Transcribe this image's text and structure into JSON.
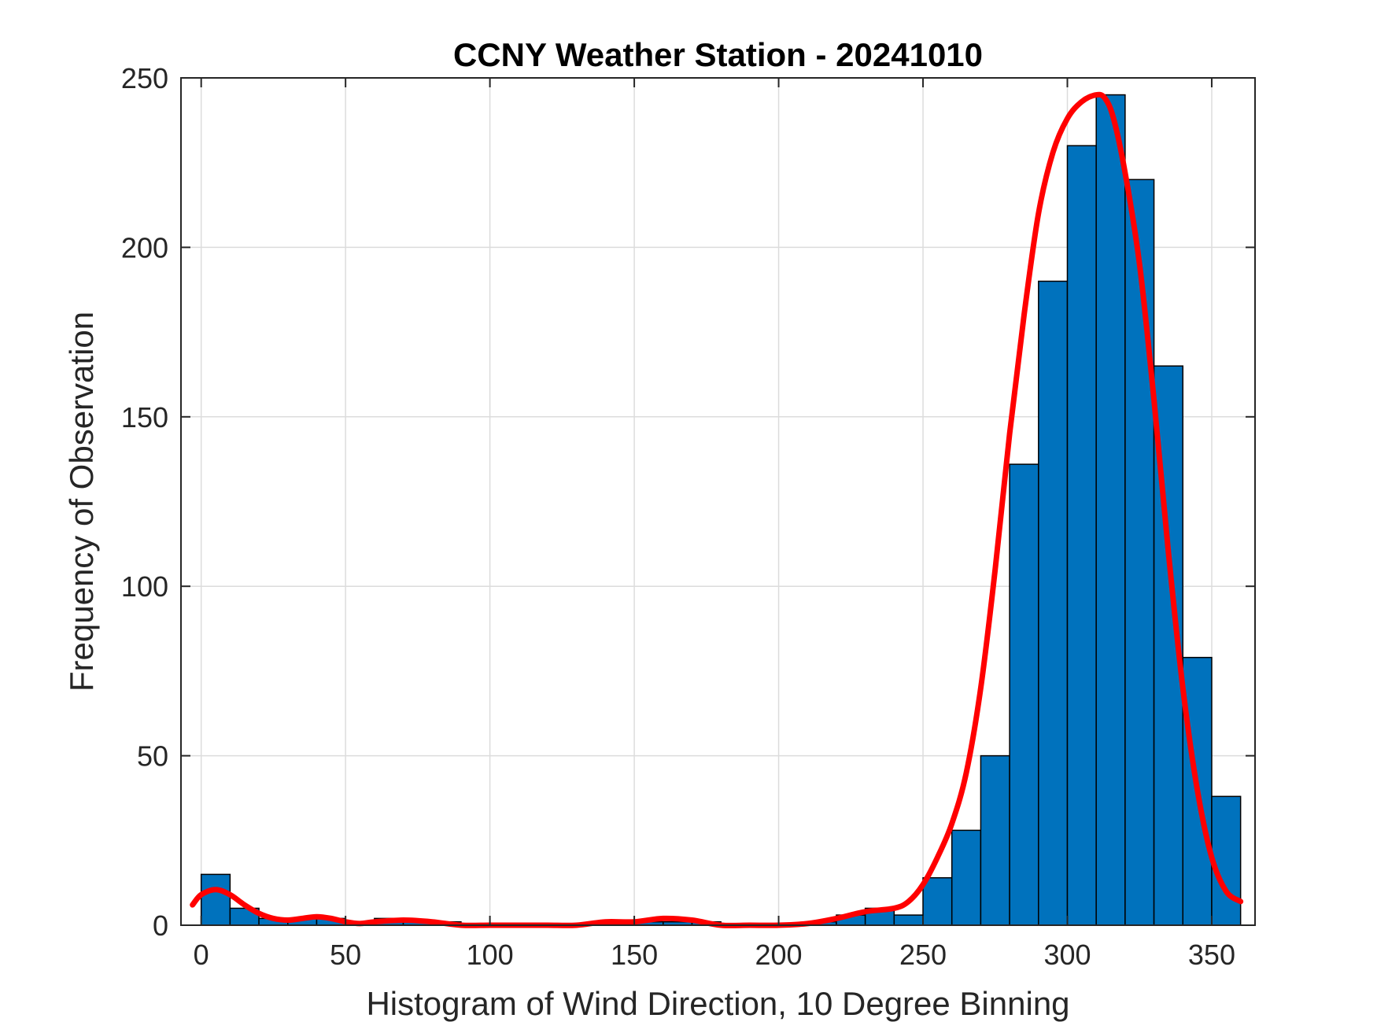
{
  "chart_data": {
    "type": "bar",
    "title": "CCNY Weather Station - 20241010",
    "xlabel": "Histogram of Wind Direction, 10 Degree Binning",
    "ylabel": "Frequency of Observation",
    "xlim": [
      -7,
      365
    ],
    "ylim": [
      0,
      250
    ],
    "xticks": [
      0,
      50,
      100,
      150,
      200,
      250,
      300,
      350
    ],
    "yticks": [
      0,
      50,
      100,
      150,
      200,
      250
    ],
    "grid": true,
    "bin_width": 10,
    "bin_edges": [
      0,
      10,
      20,
      30,
      40,
      50,
      60,
      70,
      80,
      90,
      100,
      110,
      120,
      130,
      140,
      150,
      160,
      170,
      180,
      190,
      200,
      210,
      220,
      230,
      240,
      250,
      260,
      270,
      280,
      290,
      300,
      310,
      320,
      330,
      340,
      350,
      360
    ],
    "values": [
      15,
      5,
      2,
      2,
      2,
      1,
      2,
      1,
      1,
      0,
      0,
      0,
      0,
      0,
      1,
      1,
      1,
      1,
      0,
      0,
      0,
      1,
      3,
      5,
      3,
      14,
      28,
      50,
      136,
      190,
      230,
      245,
      220,
      165,
      79,
      38
    ],
    "bar_color": "#0072BD",
    "fit_line": {
      "color": "#FF0000",
      "x": [
        -3,
        0,
        5,
        10,
        15,
        20,
        25,
        30,
        35,
        40,
        45,
        50,
        55,
        60,
        70,
        80,
        90,
        100,
        110,
        120,
        130,
        140,
        150,
        160,
        170,
        180,
        190,
        200,
        210,
        220,
        230,
        240,
        245,
        250,
        255,
        260,
        265,
        270,
        275,
        280,
        285,
        290,
        295,
        300,
        305,
        310,
        313,
        316,
        320,
        325,
        330,
        335,
        340,
        345,
        350,
        355,
        360
      ],
      "y": [
        6,
        9,
        10.5,
        9,
        6,
        3.5,
        2,
        1.5,
        2,
        2.5,
        2,
        1,
        0.5,
        1,
        1.5,
        1,
        0,
        0,
        0,
        0,
        0,
        1,
        1,
        2,
        1.5,
        0,
        0,
        0,
        0.5,
        2,
        4,
        5,
        7,
        12,
        20,
        30,
        45,
        70,
        105,
        145,
        180,
        210,
        228,
        238,
        243,
        245,
        244,
        238,
        222,
        195,
        155,
        110,
        70,
        40,
        20,
        10,
        7
      ]
    }
  }
}
